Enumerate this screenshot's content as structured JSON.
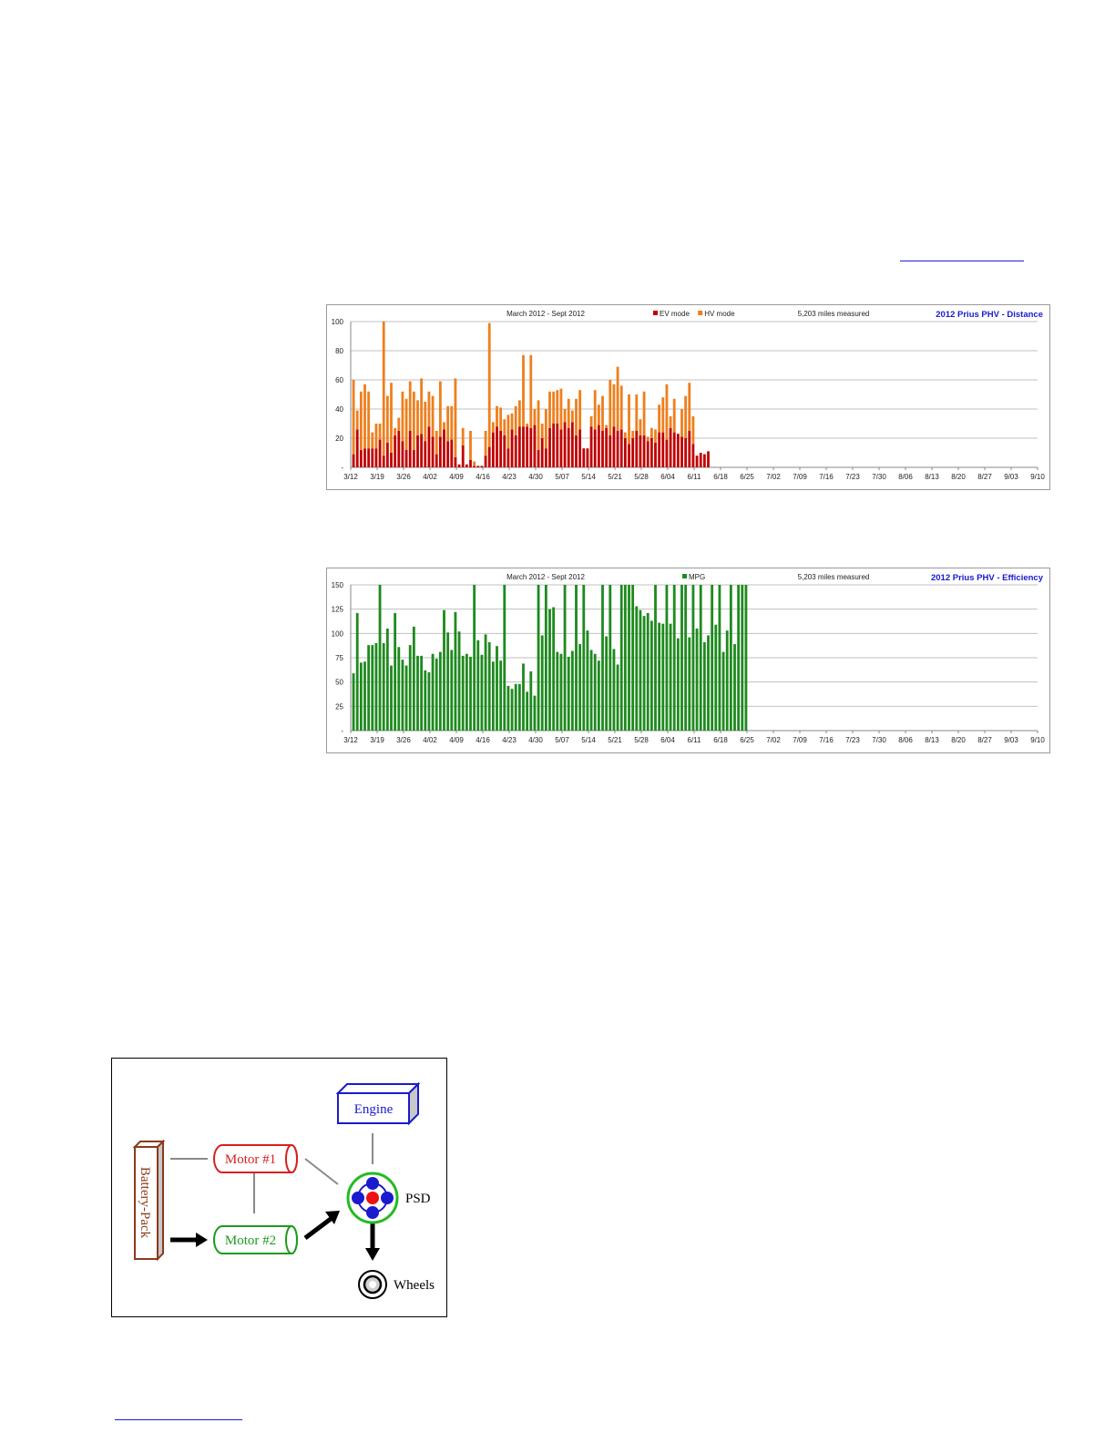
{
  "colors": {
    "ev": "#c00000",
    "hv": "#ee7f1d",
    "mpg": "#1e8a1e",
    "title": "#1a1acf",
    "grid": "#c0c0c0",
    "axis_text": "#222222",
    "link": "#1d1dd8"
  },
  "chart_data": [
    {
      "type": "bar",
      "stacked": true,
      "title": "2012 Prius PHV - Distance",
      "subtitle": "March 2012  -  Sept 2012",
      "note": "5,203 miles measured",
      "xlabel": "",
      "ylabel": "",
      "ylim": [
        0,
        100
      ],
      "y_ticks": [
        "-",
        "20",
        "40",
        "60",
        "80",
        "100"
      ],
      "grid": true,
      "legend": "top-center",
      "x_tick_labels": [
        "3/12",
        "3/19",
        "3/26",
        "4/02",
        "4/09",
        "4/16",
        "4/23",
        "4/30",
        "5/07",
        "5/14",
        "5/21",
        "5/28",
        "6/04",
        "6/11",
        "6/18",
        "6/25",
        "7/02",
        "7/09",
        "7/16",
        "7/23",
        "7/30",
        "8/06",
        "8/13",
        "8/20",
        "8/27",
        "9/03",
        "9/10"
      ],
      "series": [
        {
          "name": "EV mode",
          "color_key": "ev",
          "values": [
            9,
            26,
            12,
            13,
            13,
            13,
            13,
            19,
            8,
            17,
            10,
            22,
            25,
            18,
            12,
            25,
            12,
            22,
            23,
            18,
            28,
            21,
            9,
            21,
            26,
            18,
            19,
            7,
            2,
            15,
            2,
            5,
            1,
            1,
            1,
            8,
            14,
            24,
            28,
            25,
            22,
            13,
            26,
            22,
            28,
            28,
            28,
            27,
            29,
            12,
            20,
            13,
            27,
            30,
            30,
            26,
            31,
            27,
            31,
            22,
            26,
            13,
            13,
            28,
            26,
            29,
            25,
            27,
            22,
            28,
            25,
            26,
            20,
            16,
            20,
            25,
            22,
            22,
            18,
            20,
            17,
            24,
            24,
            19,
            27,
            24,
            23,
            21,
            20,
            25,
            16,
            8,
            10,
            9,
            11
          ]
        },
        {
          "name": "HV mode",
          "color_key": "hv",
          "values": [
            51,
            13,
            40,
            44,
            39,
            11,
            17,
            11,
            92,
            32,
            48,
            5,
            9,
            34,
            35,
            34,
            40,
            24,
            38,
            27,
            24,
            28,
            16,
            38,
            5,
            24,
            23,
            54,
            0,
            12,
            0,
            20,
            3,
            0,
            0,
            17,
            85,
            7,
            14,
            16,
            11,
            23,
            11,
            20,
            18,
            49,
            2,
            50,
            11,
            34,
            10,
            27,
            25,
            22,
            23,
            28,
            9,
            20,
            8,
            25,
            27,
            0,
            0,
            7,
            27,
            14,
            24,
            2,
            38,
            29,
            44,
            30,
            4,
            34,
            5,
            25,
            11,
            30,
            3,
            7,
            9,
            19,
            24,
            38,
            8,
            23,
            0,
            19,
            29,
            33,
            19,
            0,
            0,
            0,
            0
          ]
        }
      ]
    },
    {
      "type": "bar",
      "title": "2012 Prius PHV - Efficiency",
      "subtitle": "March 2012  -  Sept 2012",
      "note": "5,203 miles measured",
      "xlabel": "",
      "ylabel": "",
      "ylim": [
        0,
        150
      ],
      "y_ticks": [
        "-",
        "25",
        "50",
        "75",
        "100",
        "125",
        "150"
      ],
      "grid": true,
      "legend": "top-center",
      "x_tick_labels": [
        "3/12",
        "3/19",
        "3/26",
        "4/02",
        "4/09",
        "4/16",
        "4/23",
        "4/30",
        "5/07",
        "5/14",
        "5/21",
        "5/28",
        "6/04",
        "6/11",
        "6/18",
        "6/25",
        "7/02",
        "7/09",
        "7/16",
        "7/23",
        "7/30",
        "8/06",
        "8/13",
        "8/20",
        "8/27",
        "9/03",
        "9/10"
      ],
      "series": [
        {
          "name": "MPG",
          "color_key": "mpg",
          "values": [
            59,
            121,
            70,
            71,
            88,
            88,
            90,
            150,
            90,
            105,
            67,
            121,
            86,
            73,
            67,
            88,
            107,
            77,
            77,
            62,
            60,
            79,
            74,
            81,
            124,
            101,
            83,
            122,
            102,
            77,
            79,
            76,
            150,
            93,
            78,
            99,
            91,
            71,
            87,
            72,
            150,
            46,
            43,
            48,
            48,
            69,
            40,
            61,
            36,
            150,
            98,
            150,
            125,
            127,
            81,
            79,
            150,
            76,
            82,
            150,
            89,
            150,
            103,
            83,
            79,
            72,
            150,
            97,
            150,
            84,
            68,
            150,
            150,
            150,
            150,
            128,
            124,
            118,
            121,
            113,
            150,
            111,
            110,
            150,
            110,
            150,
            95,
            150,
            150,
            96,
            150,
            105,
            150,
            91,
            98,
            150,
            109,
            150,
            81,
            103,
            150,
            89,
            150,
            150,
            150
          ]
        }
      ]
    }
  ],
  "diagram": {
    "engine": "Engine",
    "battery": "Battery-Pack",
    "motor1": "Motor #1",
    "motor2": "Motor #2",
    "psd": "PSD",
    "wheels": "Wheels"
  }
}
